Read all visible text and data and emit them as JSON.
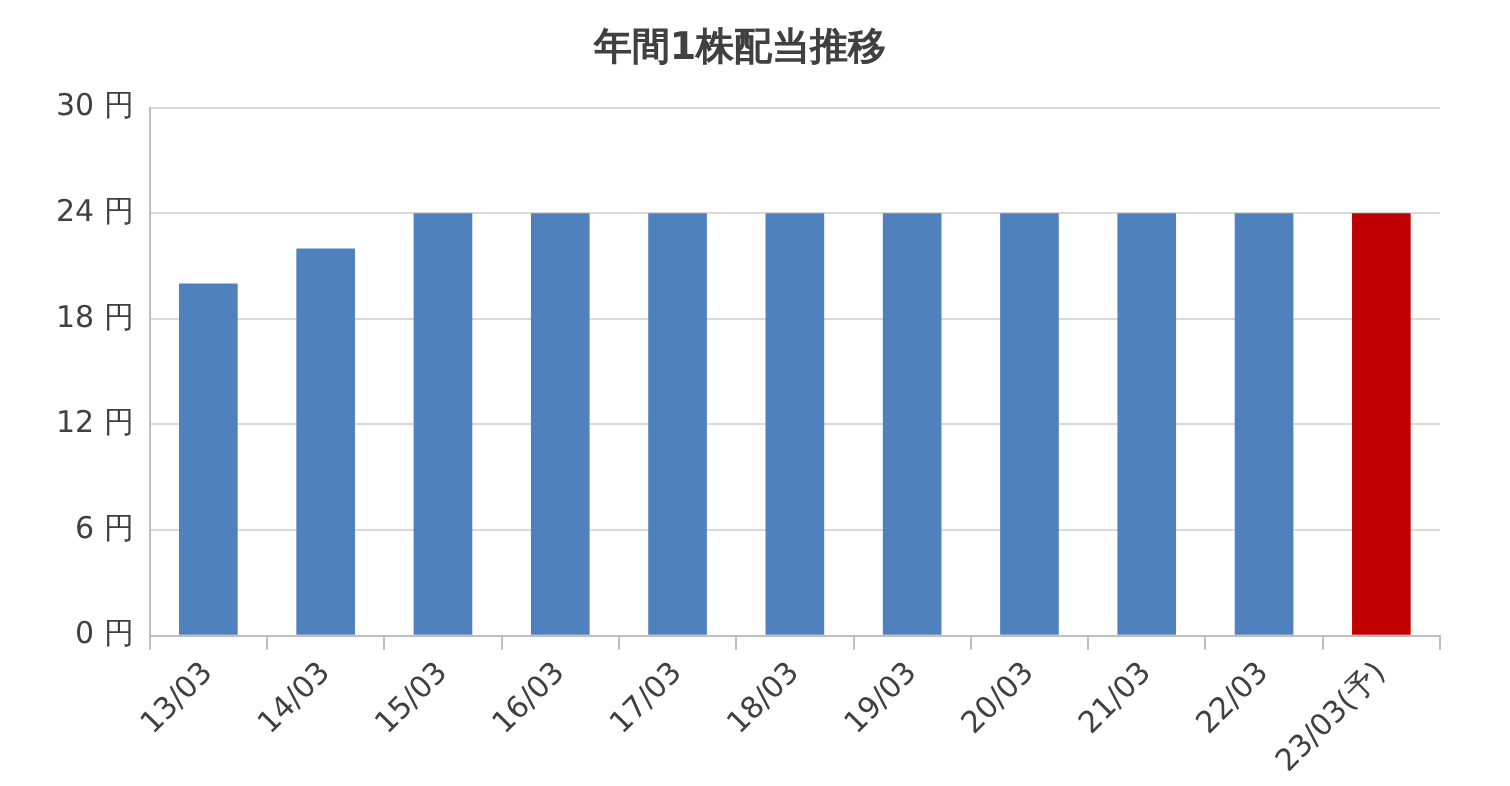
{
  "chart_data": {
    "type": "bar",
    "title": "年間1株配当推移",
    "categories": [
      "13/03",
      "14/03",
      "15/03",
      "16/03",
      "17/03",
      "18/03",
      "19/03",
      "20/03",
      "21/03",
      "22/03",
      "23/03(予)"
    ],
    "values": [
      20,
      22,
      24,
      24,
      24,
      24,
      24,
      24,
      24,
      24,
      24
    ],
    "colors": [
      "#4f81bd",
      "#4f81bd",
      "#4f81bd",
      "#4f81bd",
      "#4f81bd",
      "#4f81bd",
      "#4f81bd",
      "#4f81bd",
      "#4f81bd",
      "#4f81bd",
      "#c00000"
    ],
    "ylim": [
      0,
      30
    ],
    "yticks": [
      {
        "value": 0,
        "label": "0 円"
      },
      {
        "value": 6,
        "label": "6 円"
      },
      {
        "value": 12,
        "label": "12 円"
      },
      {
        "value": 18,
        "label": "18 円"
      },
      {
        "value": 24,
        "label": "24 円"
      },
      {
        "value": 30,
        "label": "30 円"
      }
    ],
    "grid": "y"
  }
}
